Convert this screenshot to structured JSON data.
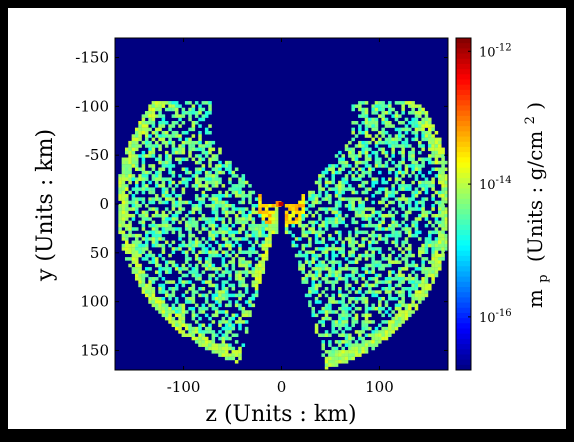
{
  "chart_data": {
    "type": "heatmap",
    "title": "",
    "xlabel": "z (Units : km)",
    "ylabel": "y (Units : km)",
    "colorbar_label": "m",
    "colorbar_label_sub": "p",
    "colorbar_label_units": "(Units : g/cm",
    "colorbar_label_sup": "2",
    "colorbar_label_close": ")",
    "xlim": [
      -170,
      170
    ],
    "ylim": [
      -170,
      170
    ],
    "y_reversed": true,
    "x_ticks": [
      -100,
      0,
      100
    ],
    "x_tick_labels": [
      "-100",
      "0",
      "100"
    ],
    "y_ticks": [
      -150,
      -100,
      -50,
      0,
      50,
      100,
      150
    ],
    "y_tick_labels": [
      "-150",
      "-100",
      "-50",
      "0",
      "50",
      "100",
      "150"
    ],
    "colorbar": {
      "scale": "log",
      "range": [
        -16.8,
        -11.8
      ],
      "ticks": [
        {
          "mantissa": "10",
          "exponent": "-12",
          "log": -12
        },
        {
          "mantissa": "10",
          "exponent": "-14",
          "log": -14
        },
        {
          "mantissa": "10",
          "exponent": "-16",
          "log": -16
        }
      ],
      "colormap": "jet"
    },
    "background_color": "#000080",
    "grid": false,
    "legend": "none",
    "regions": {
      "source": {
        "z": 0,
        "y": 0,
        "log_value": -12.1
      },
      "left_lobe": {
        "z_min": -168,
        "z_max": -8,
        "y_top": -105,
        "y_bottom": 140,
        "typical_log_value": -14.3
      },
      "right_lobe": {
        "z_min": 8,
        "z_max": 168,
        "y_top": -105,
        "y_bottom": 150,
        "typical_log_value": -14.4
      },
      "fill_fraction": 0.55
    }
  }
}
